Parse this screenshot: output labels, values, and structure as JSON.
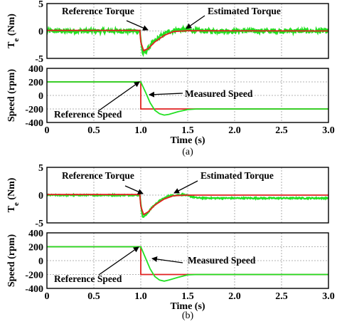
{
  "chart_data": [
    {
      "type": "line",
      "caption": "(a)",
      "panels": [
        {
          "ylabel": "T",
          "ylabel_sub": "e",
          "ylabel_unit": " (Nm)",
          "xlim": [
            0,
            3.0
          ],
          "ylim": [
            -5,
            5
          ],
          "yticks": [
            "5",
            "0",
            "-5"
          ],
          "ytick_values": [
            5,
            0,
            -5
          ],
          "grid": true,
          "annotations": [
            "Reference Torque",
            "Estimated Torque"
          ],
          "series": [
            {
              "name": "Estimated Torque",
              "color": "#22e022",
              "points": [
                [
                  0,
                  0
                ],
                [
                  0.99,
                  0
                ],
                [
                  1.0,
                  -1.5
                ],
                [
                  1.02,
                  -4.2
                ],
                [
                  1.06,
                  -3.6
                ],
                [
                  1.12,
                  -2.3
                ],
                [
                  1.2,
                  -1.1
                ],
                [
                  1.3,
                  -0.1
                ],
                [
                  1.4,
                  0.25
                ],
                [
                  1.5,
                  0.15
                ],
                [
                  1.7,
                  0
                ],
                [
                  3.0,
                  0
                ]
              ],
              "noise": 0.45
            },
            {
              "name": "Reference Torque",
              "color": "#e02020",
              "points": [
                [
                  0,
                  0.1
                ],
                [
                  0.99,
                  0.1
                ],
                [
                  1.0,
                  -2.0
                ],
                [
                  1.03,
                  -3.6
                ],
                [
                  1.08,
                  -3.2
                ],
                [
                  1.15,
                  -2.0
                ],
                [
                  1.25,
                  -0.8
                ],
                [
                  1.35,
                  -0.1
                ],
                [
                  1.5,
                  0.05
                ],
                [
                  3.0,
                  0
                ]
              ]
            }
          ]
        },
        {
          "ylabel": "Speed (rpm)",
          "xlim": [
            0,
            3.0
          ],
          "ylim": [
            -400,
            400
          ],
          "yticks": [
            "400",
            "200",
            "0",
            "-200",
            "-400"
          ],
          "ytick_values": [
            400,
            200,
            0,
            -200,
            -400
          ],
          "xticks": [
            "0",
            "0.5",
            "1.0",
            "1.5",
            "2.0",
            "2.5",
            "3.0"
          ],
          "xtick_values": [
            0,
            0.5,
            1.0,
            1.5,
            2.0,
            2.5,
            3.0
          ],
          "xlabel": "Time (s)",
          "grid": true,
          "annotations": [
            "Measured Speed",
            "Reference Speed"
          ],
          "series": [
            {
              "name": "Reference Speed",
              "color": "#e02020",
              "points": [
                [
                  0,
                  200
                ],
                [
                  1.0,
                  200
                ],
                [
                  1.0,
                  -200
                ],
                [
                  3.0,
                  -200
                ]
              ]
            },
            {
              "name": "Measured Speed",
              "color": "#22e022",
              "points": [
                [
                  0,
                  200
                ],
                [
                  1.0,
                  200
                ],
                [
                  1.05,
                  50
                ],
                [
                  1.1,
                  -110
                ],
                [
                  1.15,
                  -220
                ],
                [
                  1.2,
                  -270
                ],
                [
                  1.25,
                  -290
                ],
                [
                  1.3,
                  -280
                ],
                [
                  1.4,
                  -240
                ],
                [
                  1.5,
                  -210
                ],
                [
                  1.6,
                  -200
                ],
                [
                  3.0,
                  -200
                ]
              ]
            }
          ]
        }
      ]
    },
    {
      "type": "line",
      "caption": "(b)",
      "panels": [
        {
          "ylabel": "T",
          "ylabel_sub": "e",
          "ylabel_unit": " (Nm)",
          "xlim": [
            0,
            3.0
          ],
          "ylim": [
            -5,
            5
          ],
          "yticks": [
            "5",
            "0",
            "-5"
          ],
          "ytick_values": [
            5,
            0,
            -5
          ],
          "grid": true,
          "annotations": [
            "Reference Torque",
            "Estimated Torque"
          ],
          "series": [
            {
              "name": "Estimated Torque",
              "color": "#22e022",
              "points": [
                [
                  0,
                  0
                ],
                [
                  0.99,
                  0
                ],
                [
                  1.0,
                  -1.5
                ],
                [
                  1.02,
                  -4.0
                ],
                [
                  1.06,
                  -3.5
                ],
                [
                  1.12,
                  -2.2
                ],
                [
                  1.2,
                  -1.0
                ],
                [
                  1.3,
                  -0.1
                ],
                [
                  1.45,
                  0.1
                ],
                [
                  1.6,
                  -0.5
                ],
                [
                  1.8,
                  -0.55
                ],
                [
                  3.0,
                  -0.55
                ]
              ],
              "noise": 0.12
            },
            {
              "name": "Reference Torque",
              "color": "#e02020",
              "points": [
                [
                  0,
                  0.1
                ],
                [
                  0.99,
                  0.1
                ],
                [
                  1.0,
                  -2.0
                ],
                [
                  1.03,
                  -3.5
                ],
                [
                  1.08,
                  -3.0
                ],
                [
                  1.15,
                  -1.8
                ],
                [
                  1.25,
                  -0.7
                ],
                [
                  1.35,
                  -0.1
                ],
                [
                  1.5,
                  0
                ],
                [
                  3.0,
                  0
                ]
              ]
            }
          ]
        },
        {
          "ylabel": "Speed (rpm)",
          "xlim": [
            0,
            3.0
          ],
          "ylim": [
            -400,
            400
          ],
          "yticks": [
            "400",
            "200",
            "0",
            "-200",
            "-400"
          ],
          "ytick_values": [
            400,
            200,
            0,
            -200,
            -400
          ],
          "xticks": [
            "0",
            "0.5",
            "1.0",
            "1.5",
            "2.0",
            "2.5",
            "3.0"
          ],
          "xtick_values": [
            0,
            0.5,
            1.0,
            1.5,
            2.0,
            2.5,
            3.0
          ],
          "xlabel": "Time (s)",
          "grid": true,
          "annotations": [
            "Measured Speed",
            "Reference Speed"
          ],
          "series": [
            {
              "name": "Reference Speed",
              "color": "#e02020",
              "points": [
                [
                  0,
                  200
                ],
                [
                  1.0,
                  200
                ],
                [
                  1.0,
                  -200
                ],
                [
                  3.0,
                  -200
                ]
              ]
            },
            {
              "name": "Measured Speed",
              "color": "#22e022",
              "points": [
                [
                  0,
                  200
                ],
                [
                  1.0,
                  200
                ],
                [
                  1.05,
                  40
                ],
                [
                  1.1,
                  -120
                ],
                [
                  1.15,
                  -230
                ],
                [
                  1.2,
                  -280
                ],
                [
                  1.25,
                  -295
                ],
                [
                  1.3,
                  -280
                ],
                [
                  1.4,
                  -240
                ],
                [
                  1.5,
                  -205
                ],
                [
                  1.6,
                  -200
                ],
                [
                  3.0,
                  -200
                ]
              ]
            }
          ]
        }
      ]
    }
  ]
}
